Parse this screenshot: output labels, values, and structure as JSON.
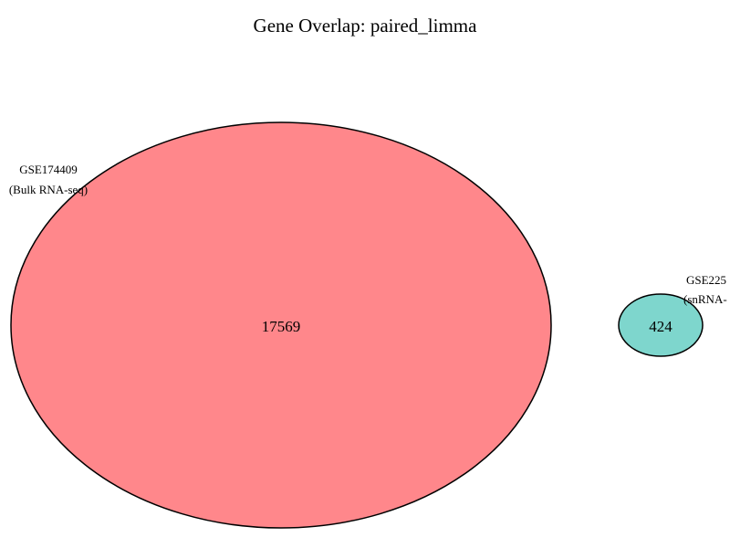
{
  "title": "Gene Overlap: paired_limma",
  "venn": {
    "sets": [
      {
        "id": "left",
        "name_line1": "GSE174409",
        "name_line2": "(Bulk RNA-seq)",
        "unique_count": "17569",
        "fill": "#ff878b",
        "stroke": "#000000"
      },
      {
        "id": "right",
        "name_line1": "GSE225",
        "name_line2": "(snRNA-",
        "unique_count": "424",
        "fill": "#7ed6cd",
        "stroke": "#000000"
      }
    ],
    "overlap_count": null
  }
}
